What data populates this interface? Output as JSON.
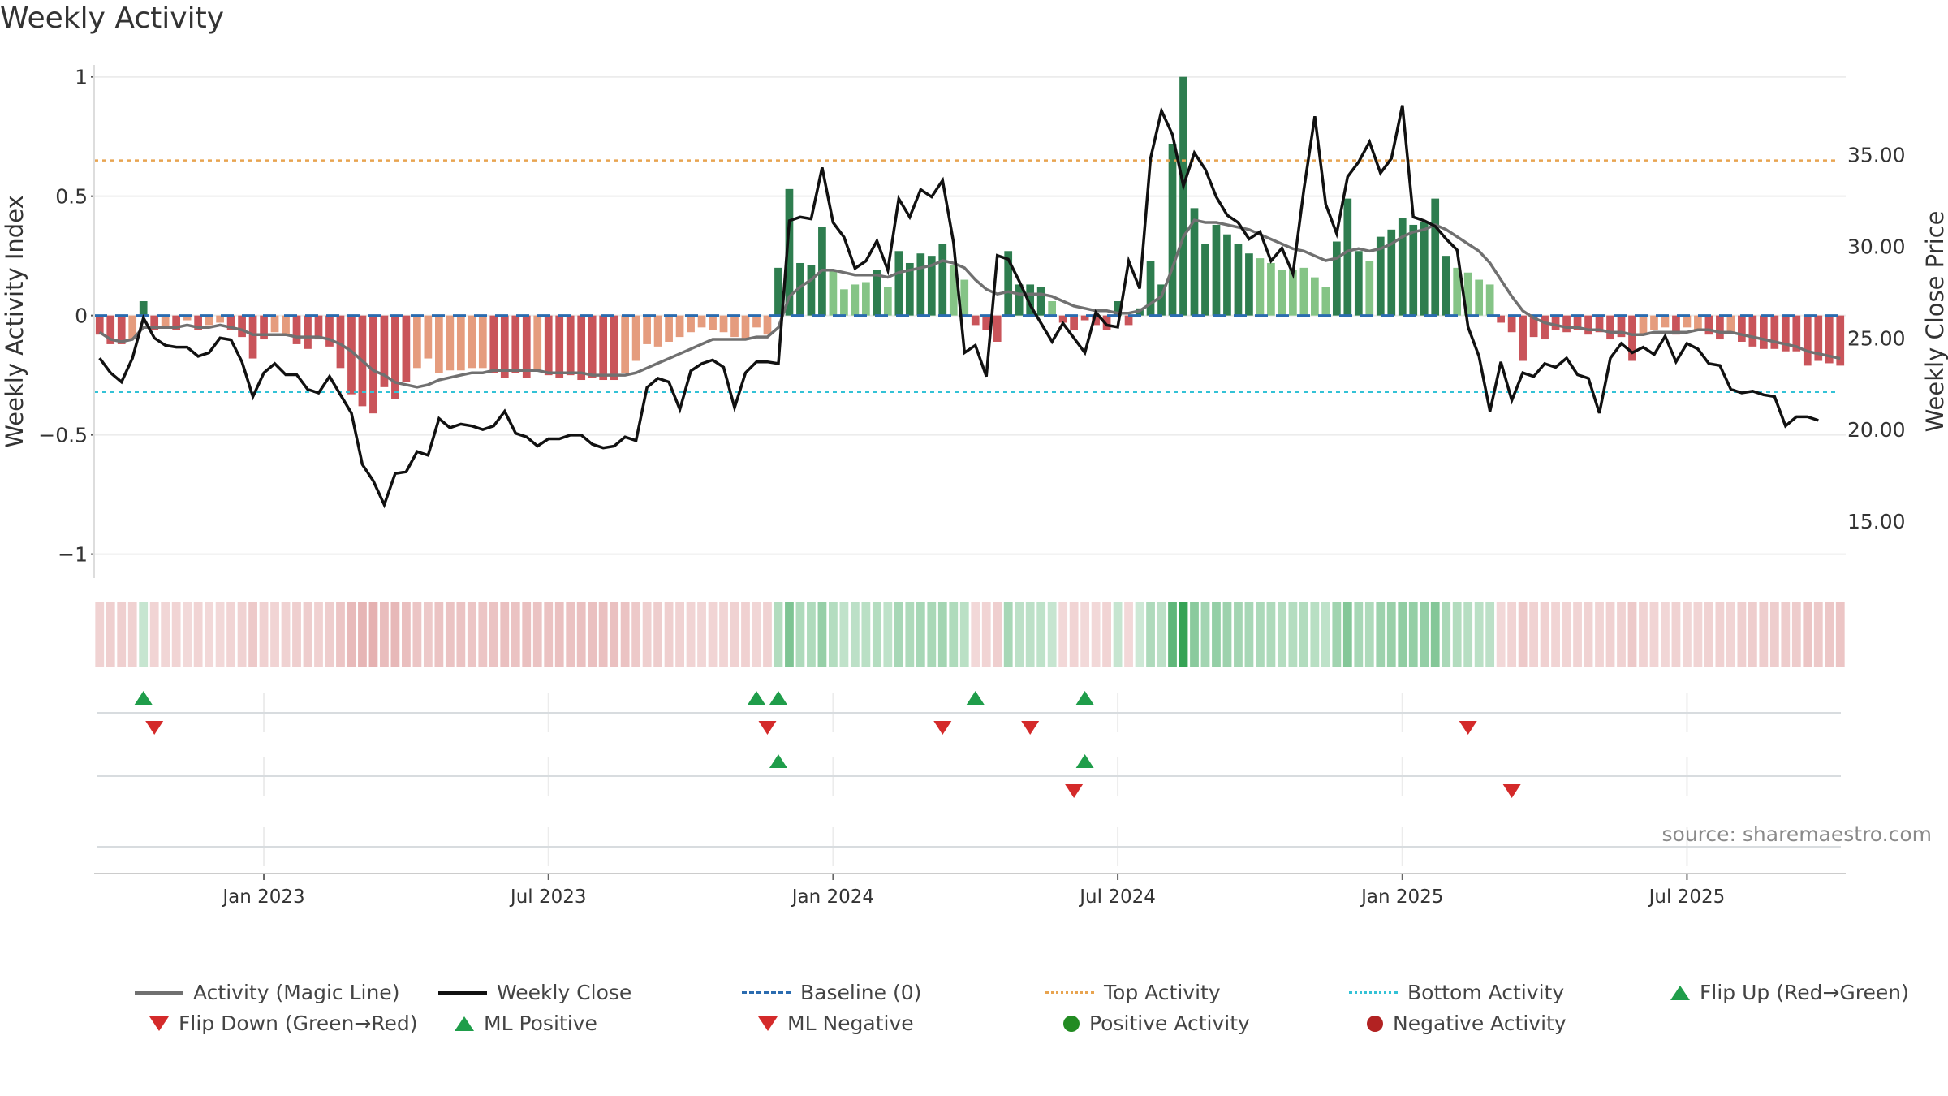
{
  "chart_data": {
    "type": "bar+line",
    "title": "Weekly Activity",
    "left_axis": {
      "label": "Weekly Activity Index",
      "range": [
        -1.1,
        1.05
      ],
      "ticks": [
        1,
        0.5,
        0,
        -0.5,
        -1
      ],
      "tick_labels": [
        "1",
        "0.5",
        "0",
        "−0.5",
        "−1"
      ]
    },
    "right_axis": {
      "label": "Weekly Close Price",
      "range": [
        11.9,
        39.9
      ],
      "ticks": [
        35,
        30,
        25,
        20,
        15
      ],
      "tick_labels": [
        "35.00",
        "30.00",
        "25.00",
        "20.00",
        "15.00"
      ]
    },
    "x_axis": {
      "tick_labels": [
        "Jan 2023",
        "Jul 2023",
        "Jan 2024",
        "Jul 2024",
        "Jan 2025",
        "Jul 2025"
      ],
      "tick_week_index": [
        15,
        41,
        67,
        93,
        119,
        145
      ]
    },
    "top_activity": 0.65,
    "bottom_activity": -0.32,
    "baseline": 0,
    "weekly_activity": [
      -0.08,
      -0.12,
      -0.12,
      -0.1,
      0.06,
      -0.06,
      -0.05,
      -0.06,
      -0.02,
      -0.06,
      -0.04,
      -0.03,
      -0.06,
      -0.09,
      -0.18,
      -0.1,
      -0.07,
      -0.08,
      -0.12,
      -0.14,
      -0.1,
      -0.13,
      -0.22,
      -0.33,
      -0.38,
      -0.41,
      -0.3,
      -0.35,
      -0.28,
      -0.22,
      -0.18,
      -0.24,
      -0.23,
      -0.23,
      -0.22,
      -0.22,
      -0.24,
      -0.26,
      -0.24,
      -0.26,
      -0.23,
      -0.25,
      -0.26,
      -0.25,
      -0.27,
      -0.26,
      -0.27,
      -0.27,
      -0.24,
      -0.19,
      -0.12,
      -0.13,
      -0.11,
      -0.09,
      -0.07,
      -0.05,
      -0.06,
      -0.07,
      -0.09,
      -0.1,
      -0.05,
      -0.08,
      0.2,
      0.53,
      0.22,
      0.21,
      0.37,
      0.19,
      0.11,
      0.13,
      0.14,
      0.19,
      0.12,
      0.27,
      0.22,
      0.26,
      0.25,
      0.3,
      0.21,
      0.15,
      -0.04,
      -0.06,
      -0.11,
      0.27,
      0.13,
      0.13,
      0.12,
      0.06,
      -0.03,
      -0.06,
      -0.02,
      -0.04,
      -0.06,
      0.06,
      -0.04,
      0.03,
      0.23,
      0.13,
      0.72,
      1.0,
      0.45,
      0.3,
      0.38,
      0.34,
      0.3,
      0.26,
      0.24,
      0.22,
      0.19,
      0.19,
      0.2,
      0.16,
      0.12,
      0.31,
      0.49,
      0.27,
      0.23,
      0.33,
      0.36,
      0.41,
      0.38,
      0.39,
      0.49,
      0.25,
      0.2,
      0.18,
      0.15,
      0.13,
      -0.03,
      -0.07,
      -0.19,
      -0.09,
      -0.1,
      -0.06,
      -0.07,
      -0.06,
      -0.08,
      -0.07,
      -0.1,
      -0.09,
      -0.19,
      -0.08,
      -0.06,
      -0.05,
      -0.08,
      -0.05,
      -0.06,
      -0.08,
      -0.1,
      -0.07,
      -0.11,
      -0.13,
      -0.14,
      -0.14,
      -0.15,
      -0.15,
      -0.21,
      -0.19,
      -0.2,
      -0.21
    ],
    "activity_magic_line": [
      -0.07,
      -0.1,
      -0.11,
      -0.1,
      -0.05,
      -0.05,
      -0.05,
      -0.05,
      -0.04,
      -0.05,
      -0.05,
      -0.04,
      -0.05,
      -0.06,
      -0.08,
      -0.08,
      -0.08,
      -0.08,
      -0.09,
      -0.09,
      -0.09,
      -0.1,
      -0.12,
      -0.15,
      -0.19,
      -0.23,
      -0.25,
      -0.28,
      -0.29,
      -0.3,
      -0.29,
      -0.27,
      -0.26,
      -0.25,
      -0.24,
      -0.24,
      -0.23,
      -0.23,
      -0.23,
      -0.23,
      -0.23,
      -0.24,
      -0.24,
      -0.24,
      -0.24,
      -0.25,
      -0.25,
      -0.25,
      -0.25,
      -0.24,
      -0.22,
      -0.2,
      -0.18,
      -0.16,
      -0.14,
      -0.12,
      -0.1,
      -0.1,
      -0.1,
      -0.1,
      -0.09,
      -0.09,
      -0.05,
      0.08,
      0.12,
      0.15,
      0.19,
      0.19,
      0.18,
      0.17,
      0.17,
      0.17,
      0.16,
      0.18,
      0.19,
      0.2,
      0.21,
      0.23,
      0.22,
      0.2,
      0.15,
      0.11,
      0.09,
      0.1,
      0.09,
      0.09,
      0.09,
      0.08,
      0.06,
      0.04,
      0.03,
      0.02,
      0.02,
      0.01,
      0.01,
      0.02,
      0.05,
      0.08,
      0.2,
      0.33,
      0.4,
      0.39,
      0.39,
      0.38,
      0.37,
      0.36,
      0.34,
      0.32,
      0.3,
      0.28,
      0.27,
      0.25,
      0.23,
      0.24,
      0.27,
      0.28,
      0.27,
      0.28,
      0.3,
      0.33,
      0.35,
      0.36,
      0.38,
      0.36,
      0.33,
      0.3,
      0.27,
      0.22,
      0.15,
      0.08,
      0.02,
      -0.01,
      -0.03,
      -0.04,
      -0.05,
      -0.05,
      -0.06,
      -0.06,
      -0.07,
      -0.07,
      -0.08,
      -0.08,
      -0.07,
      -0.07,
      -0.07,
      -0.07,
      -0.06,
      -0.06,
      -0.07,
      -0.07,
      -0.08,
      -0.09,
      -0.1,
      -0.11,
      -0.12,
      -0.13,
      -0.15,
      -0.16,
      -0.17,
      -0.18
    ],
    "weekly_close": [
      23.9,
      23.1,
      22.6,
      23.9,
      26.1,
      25.0,
      24.6,
      24.5,
      24.5,
      24.0,
      24.2,
      25.0,
      24.9,
      23.7,
      21.8,
      23.1,
      23.6,
      23.0,
      23.0,
      22.2,
      22.0,
      22.9,
      21.9,
      20.9,
      18.1,
      17.2,
      15.9,
      17.6,
      17.7,
      18.8,
      18.6,
      20.6,
      20.1,
      20.3,
      20.2,
      20.0,
      20.2,
      21.0,
      19.8,
      19.6,
      19.1,
      19.5,
      19.5,
      19.7,
      19.7,
      19.2,
      19.0,
      19.1,
      19.6,
      19.4,
      22.3,
      22.8,
      22.6,
      21.1,
      23.2,
      23.6,
      23.8,
      23.4,
      21.2,
      23.1,
      23.7,
      23.7,
      23.6,
      31.4,
      31.6,
      31.5,
      34.3,
      31.3,
      30.5,
      28.8,
      29.2,
      30.3,
      28.7,
      32.6,
      31.6,
      33.1,
      32.7,
      33.6,
      30.2,
      24.2,
      24.6,
      22.9,
      29.5,
      29.3,
      28.1,
      26.8,
      25.8,
      24.8,
      25.8,
      25.0,
      24.2,
      26.4,
      25.7,
      25.6,
      29.2,
      27.7,
      34.8,
      37.4,
      36.1,
      33.3,
      35.1,
      34.2,
      32.7,
      31.7,
      31.3,
      30.4,
      30.8,
      29.2,
      29.9,
      28.5,
      33.1,
      37.1,
      32.3,
      30.7,
      33.8,
      34.6,
      35.7,
      34.0,
      34.8,
      37.7,
      31.6,
      31.4,
      31.1,
      30.4,
      29.8,
      25.6,
      24.0,
      21.0,
      23.7,
      21.6,
      23.1,
      22.9,
      23.6,
      23.4,
      23.9,
      23.0,
      22.8,
      20.9,
      23.9,
      24.7,
      24.2,
      24.5,
      24.1,
      25.1,
      23.7,
      24.7,
      24.4,
      23.6,
      23.5,
      22.2,
      22.0,
      22.1,
      21.9,
      21.8,
      20.2,
      20.7,
      20.7,
      20.5
    ],
    "heatmap_strip": "per-week color intensity derived from weekly_activity",
    "signal_rows": [
      {
        "name": "Flip Up / Flip Down",
        "up_weeks": [
          4,
          60,
          62,
          80,
          90
        ],
        "down_weeks": [
          5,
          61,
          77,
          85,
          125
        ]
      },
      {
        "name": "ML Positive / ML Negative",
        "up_weeks": [
          62,
          90
        ],
        "down_weeks": [
          89,
          129
        ]
      },
      {
        "name": "Positive / Negative Activity",
        "up_weeks": [],
        "down_weeks": []
      }
    ],
    "colors": {
      "strong_pos": "#2e7d4f",
      "weak_pos": "#85c486",
      "strong_neg": "#c9545a",
      "weak_neg": "#e59c7e",
      "close": "#111111",
      "magic": "#707070",
      "baseline": "#2b6cb0",
      "top": "#e8a450",
      "bottom": "#33c2d6",
      "flip_up": "#1f9d4a",
      "flip_dn": "#d42a2a",
      "dot_pos": "#228b22",
      "dot_neg": "#b22222"
    },
    "legend": [
      "Activity (Magic Line)",
      "Weekly Close",
      "Baseline (0)",
      "Top Activity",
      "Bottom Activity",
      "Flip Up (Red→Green)",
      "Flip Down (Green→Red)",
      "ML Positive",
      "ML Negative",
      "Positive Activity",
      "Negative Activity"
    ]
  },
  "source": "source: sharemaestro.com"
}
